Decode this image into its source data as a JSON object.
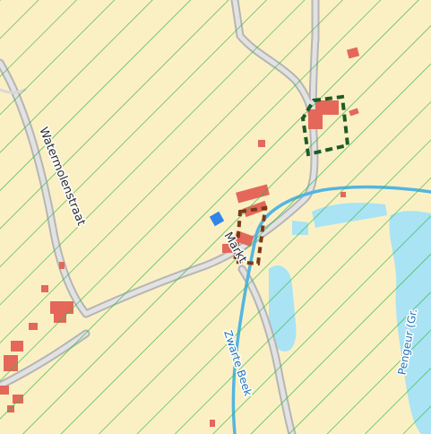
{
  "colors": {
    "land": "#fbf0c4",
    "road": "#c9c9c9",
    "road_casing": "#b5b5b5",
    "road_fill": "#e2e2e2",
    "water": "#a9e3f4",
    "stream": "#54b5e0",
    "building": "#e4675a",
    "hatch": "#3cb34a",
    "parcel_outline_green": "#1e5c26",
    "parcel_outline_brown": "#7a3a1a",
    "marker": "#2f86e8"
  },
  "labels": {
    "street_1": "Watermolenstraat",
    "street_2": "Markt",
    "waterway_1": "Zwarte Beek",
    "waterway_2": "Pengeur (Gr."
  },
  "markers": [
    {
      "name": "point-of-interest",
      "icon": "blue-square-marker"
    }
  ]
}
